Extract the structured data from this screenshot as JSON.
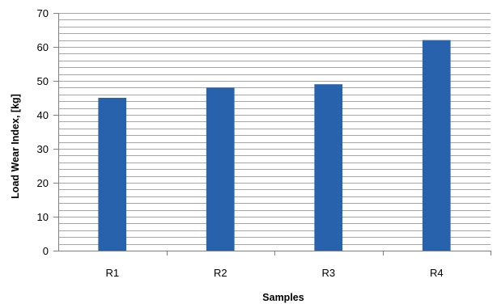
{
  "chart_data": {
    "type": "bar",
    "title": "",
    "xlabel": "Samples",
    "ylabel": "Load Wear Index, [kg]",
    "categories": [
      "R1",
      "R2",
      "R3",
      "R4"
    ],
    "series": [
      {
        "values": [
          45,
          48,
          49,
          62
        ]
      }
    ],
    "ylim": [
      0,
      70
    ],
    "y_ticks": [
      "0",
      "10",
      "20",
      "30",
      "40",
      "50",
      "60",
      "70"
    ],
    "y_minor_step": 2,
    "grid": true,
    "legend": "none",
    "colors": {
      "bar": "#2862ad",
      "grid": "#a6a6a6",
      "axis": "#808080"
    }
  }
}
